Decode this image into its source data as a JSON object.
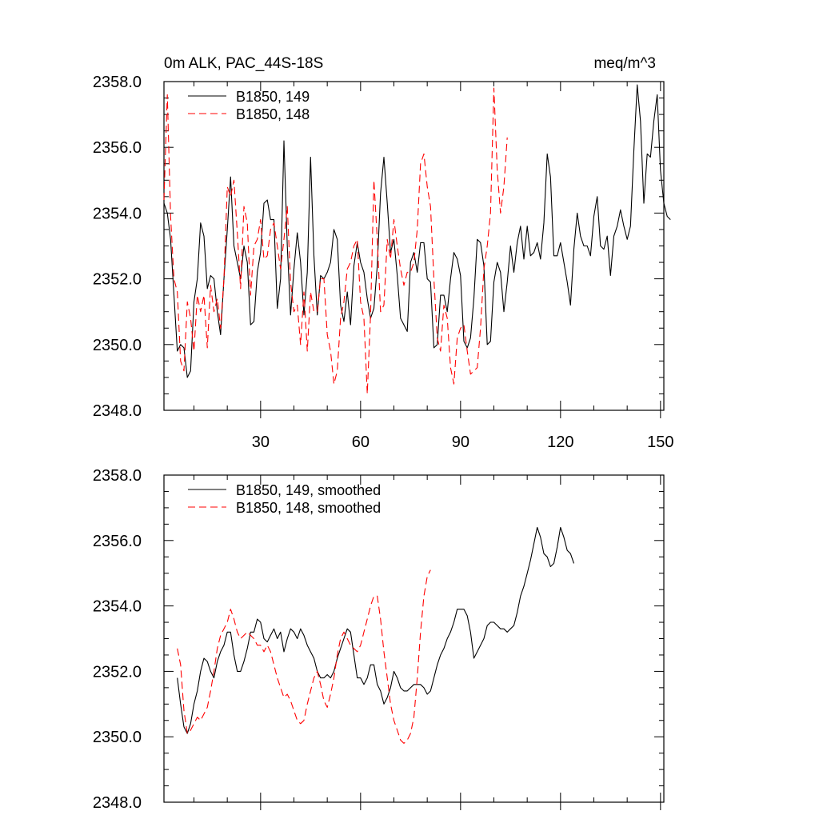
{
  "chart_data": [
    {
      "type": "line",
      "title_left": "0m ALK, PAC_44S-18S",
      "title_right": "meq/m^3",
      "xlabel": "",
      "ylabel": "",
      "xlim": [
        1,
        151
      ],
      "ylim": [
        2348.0,
        2358.0
      ],
      "y_ticks": [
        2348.0,
        2350.0,
        2352.0,
        2354.0,
        2356.0,
        2358.0
      ],
      "x_ticks": [
        30,
        60,
        90,
        120,
        150
      ],
      "show_x_tick_labels": true,
      "legend": "top-left",
      "series": [
        {
          "name": "B1850, 149",
          "color": "#000000",
          "dash": "solid",
          "x_start": 1,
          "values": [
            2354.3,
            2354.0,
            2353.2,
            2351.5,
            2349.8,
            2350.0,
            2349.9,
            2349.0,
            2349.2,
            2351.3,
            2352.0,
            2353.7,
            2353.3,
            2351.7,
            2352.1,
            2352.0,
            2351.0,
            2350.3,
            2352.0,
            2353.5,
            2355.1,
            2353.0,
            2352.5,
            2352.0,
            2353.0,
            2352.5,
            2350.6,
            2350.7,
            2352.2,
            2352.8,
            2354.3,
            2354.4,
            2353.8,
            2353.8,
            2351.1,
            2352.0,
            2356.2,
            2353.0,
            2350.9,
            2352.3,
            2353.4,
            2352.5,
            2350.9,
            2352.2,
            2355.7,
            2352.7,
            2350.9,
            2352.1,
            2352.0,
            2352.2,
            2352.5,
            2353.5,
            2353.2,
            2351.2,
            2350.7,
            2351.6,
            2350.6,
            2352.4,
            2353.1,
            2352.5,
            2352.2,
            2351.4,
            2350.8,
            2351.1,
            2352.4,
            2354.6,
            2355.7,
            2354.3,
            2352.8,
            2353.2,
            2352.1,
            2350.8,
            2350.6,
            2350.4,
            2352.5,
            2352.8,
            2352.2,
            2353.1,
            2353.1,
            2352.0,
            2351.9,
            2349.9,
            2350.0,
            2351.5,
            2351.5,
            2351.0,
            2352.0,
            2352.8,
            2352.6,
            2352.1,
            2350.1,
            2349.9,
            2350.2,
            2351.4,
            2353.2,
            2353.1,
            2352.4,
            2350.0,
            2350.1,
            2351.9,
            2352.5,
            2352.2,
            2351.0,
            2351.9,
            2353.0,
            2352.2,
            2353.1,
            2353.6,
            2352.6,
            2353.6,
            2352.7,
            2352.8,
            2353.1,
            2352.6,
            2353.7,
            2355.8,
            2355.1,
            2352.7,
            2352.7,
            2353.1,
            2352.5,
            2351.9,
            2351.2,
            2352.9,
            2354.0,
            2353.3,
            2353.0,
            2353.0,
            2352.7,
            2353.9,
            2354.5,
            2353.0,
            2352.9,
            2353.3,
            2352.1,
            2353.3,
            2353.6,
            2354.1,
            2353.6,
            2353.2,
            2353.6,
            2355.9,
            2357.9,
            2356.8,
            2354.3,
            2355.8,
            2355.7,
            2356.8,
            2357.6,
            2355.3,
            2354.3,
            2353.9,
            2353.8
          ]
        },
        {
          "name": "B1850, 148",
          "color": "#ff0000",
          "dash": "dashed",
          "x_start": 1,
          "values": [
            2354.4,
            2357.6,
            2353.9,
            2352.0,
            2351.6,
            2349.5,
            2349.2,
            2351.3,
            2350.8,
            2349.8,
            2351.5,
            2351.0,
            2351.5,
            2349.9,
            2351.8,
            2351.0,
            2351.4,
            2350.5,
            2352.0,
            2354.8,
            2354.5,
            2355.0,
            2353.4,
            2351.7,
            2354.2,
            2353.7,
            2351.5,
            2353.0,
            2353.2,
            2353.8,
            2352.6,
            2352.7,
            2353.5,
            2353.7,
            2353.0,
            2352.3,
            2353.2,
            2354.2,
            2351.9,
            2351.0,
            2351.2,
            2350.0,
            2351.6,
            2349.8,
            2351.6,
            2351.0,
            2351.0,
            2352.0,
            2352.0,
            2350.3,
            2349.8,
            2348.8,
            2349.2,
            2350.8,
            2351.3,
            2352.3,
            2352.5,
            2353.0,
            2353.2,
            2351.3,
            2350.8,
            2348.5,
            2350.9,
            2355.0,
            2353.2,
            2351.0,
            2351.2,
            2353.2,
            2352.6,
            2353.8,
            2353.0,
            2352.3,
            2351.8,
            2352.2,
            2352.2,
            2352.5,
            2353.5,
            2355.5,
            2355.8,
            2354.8,
            2354.2,
            2352.0,
            2350.2,
            2349.8,
            2351.2,
            2350.8,
            2349.3,
            2348.8,
            2350.2,
            2350.5,
            2350.6,
            2349.8,
            2349.1,
            2349.2,
            2349.3,
            2350.5,
            2352.3,
            2353.0,
            2354.0,
            2357.8,
            2355.3,
            2354.0,
            2354.8,
            2356.3
          ]
        }
      ]
    },
    {
      "type": "line",
      "title_left": "",
      "title_right": "",
      "xlabel": "",
      "ylabel": "",
      "xlim": [
        1,
        151
      ],
      "ylim": [
        2348.0,
        2358.0
      ],
      "y_ticks": [
        2348.0,
        2350.0,
        2352.0,
        2354.0,
        2356.0,
        2358.0
      ],
      "x_ticks": [
        30,
        60,
        90,
        120,
        150
      ],
      "show_x_tick_labels": false,
      "legend": "top-left",
      "series": [
        {
          "name": "B1850, 149, smoothed",
          "color": "#000000",
          "dash": "solid",
          "x_start": 5,
          "values": [
            2351.8,
            2351.0,
            2350.3,
            2350.1,
            2350.4,
            2351.0,
            2351.4,
            2352.0,
            2352.4,
            2352.3,
            2352.0,
            2351.8,
            2352.3,
            2352.6,
            2352.8,
            2353.2,
            2353.2,
            2352.5,
            2352.0,
            2352.0,
            2352.3,
            2352.7,
            2353.2,
            2353.2,
            2353.6,
            2353.5,
            2353.0,
            2352.9,
            2353.1,
            2353.3,
            2353.0,
            2353.2,
            2352.6,
            2353.0,
            2353.3,
            2353.2,
            2353.0,
            2353.3,
            2353.1,
            2352.8,
            2352.6,
            2352.4,
            2352.0,
            2351.8,
            2351.8,
            2351.9,
            2351.8,
            2352.0,
            2352.4,
            2352.7,
            2353.0,
            2353.3,
            2353.2,
            2352.5,
            2351.8,
            2351.8,
            2351.6,
            2351.8,
            2352.2,
            2352.2,
            2351.6,
            2351.4,
            2351.0,
            2351.2,
            2351.5,
            2352.0,
            2351.8,
            2351.5,
            2351.4,
            2351.4,
            2351.5,
            2351.6,
            2351.6,
            2351.6,
            2351.5,
            2351.3,
            2351.4,
            2351.8,
            2352.2,
            2352.5,
            2352.7,
            2353.0,
            2353.2,
            2353.5,
            2353.9,
            2353.9,
            2353.9,
            2353.7,
            2353.2,
            2352.4,
            2352.6,
            2352.8,
            2353.0,
            2353.4,
            2353.5,
            2353.5,
            2353.4,
            2353.3,
            2353.3,
            2353.2,
            2353.3,
            2353.4,
            2353.8,
            2354.3,
            2354.6,
            2355.0,
            2355.4,
            2355.9,
            2356.4,
            2356.1,
            2355.6,
            2355.5,
            2355.2,
            2355.3,
            2355.8,
            2356.4,
            2356.1,
            2355.7,
            2355.6,
            2355.3
          ]
        },
        {
          "name": "B1850, 148, smoothed",
          "color": "#ff0000",
          "dash": "dashed",
          "x_start": 5,
          "values": [
            2352.7,
            2352.2,
            2350.8,
            2350.1,
            2350.2,
            2350.4,
            2350.6,
            2350.5,
            2350.7,
            2350.9,
            2351.4,
            2352.0,
            2352.7,
            2353.1,
            2353.3,
            2353.5,
            2353.9,
            2353.6,
            2353.2,
            2353.0,
            2353.1,
            2353.2,
            2353.1,
            2353.0,
            2352.8,
            2352.8,
            2352.6,
            2352.8,
            2352.6,
            2352.2,
            2351.8,
            2351.5,
            2351.2,
            2351.3,
            2351.1,
            2350.8,
            2350.5,
            2350.4,
            2350.5,
            2351.0,
            2351.4,
            2351.8,
            2352.0,
            2351.6,
            2351.1,
            2350.9,
            2351.3,
            2351.8,
            2352.5,
            2353.0,
            2353.2,
            2353.0,
            2352.8,
            2352.7,
            2352.6,
            2352.8,
            2353.2,
            2353.6,
            2354.0,
            2354.3,
            2354.3,
            2353.6,
            2352.6,
            2351.8,
            2351.0,
            2350.5,
            2350.2,
            2349.9,
            2349.8,
            2349.9,
            2350.1,
            2350.6,
            2351.8,
            2353.2,
            2354.3,
            2354.9,
            2355.1
          ]
        }
      ]
    }
  ]
}
